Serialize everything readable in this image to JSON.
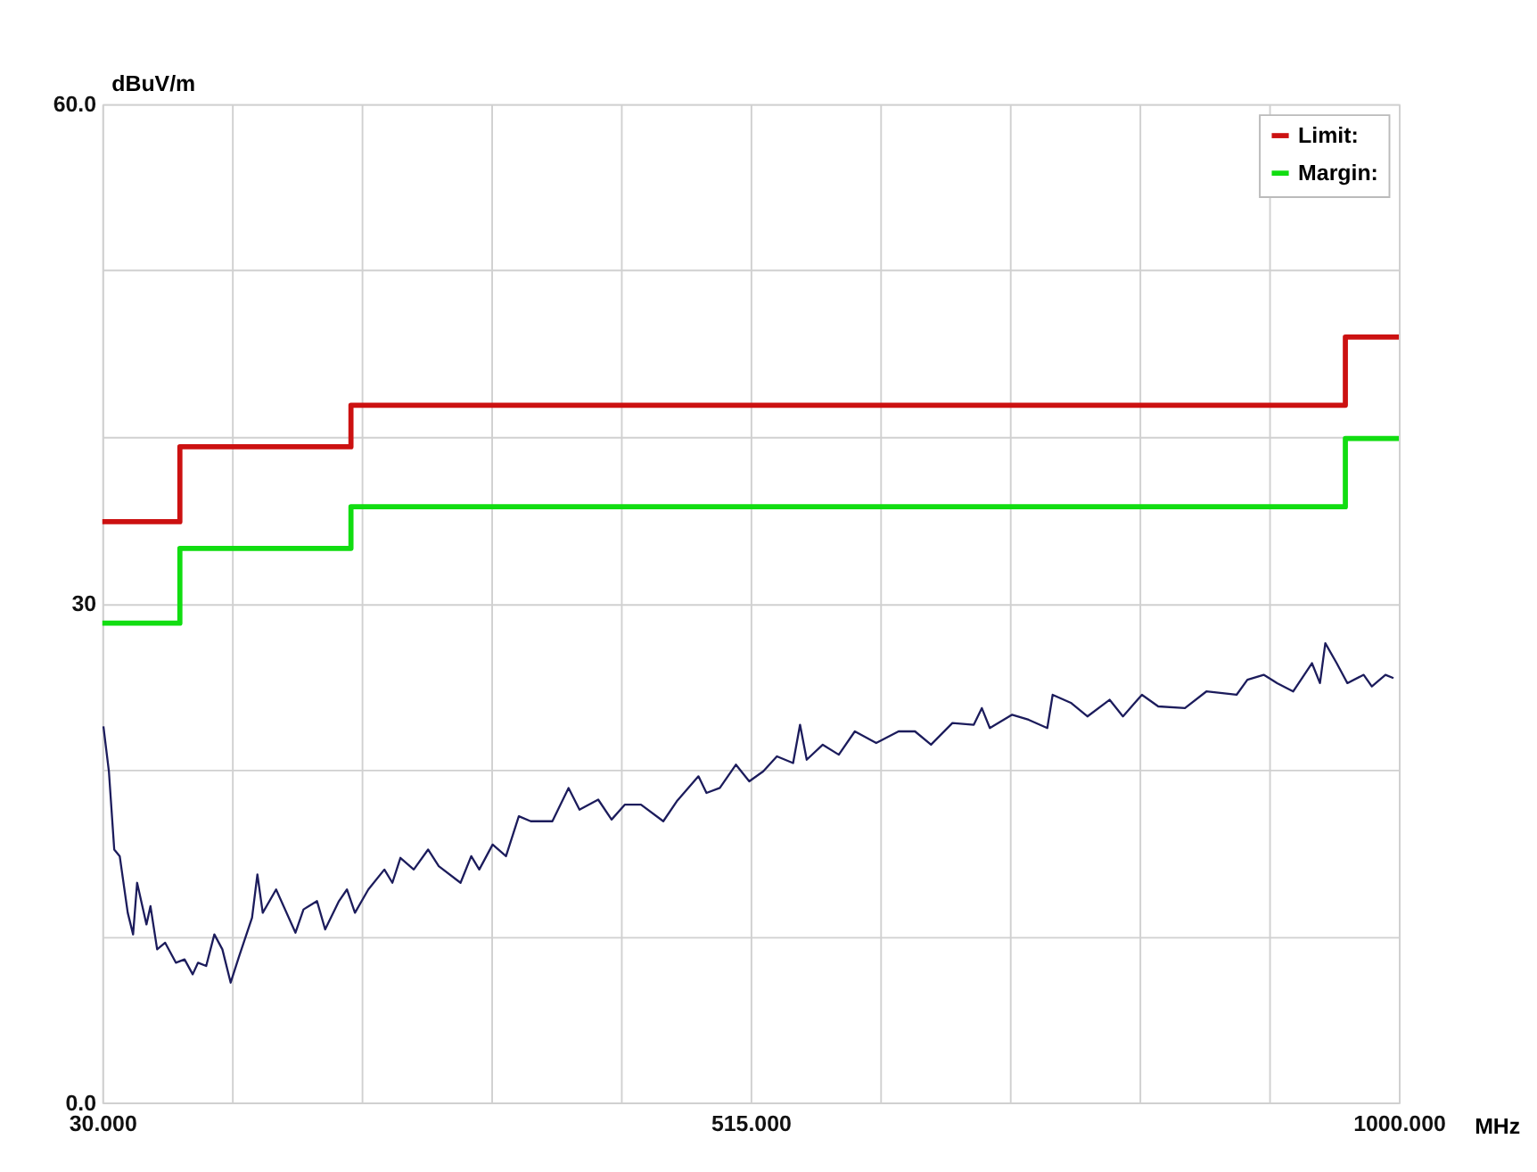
{
  "chart_data": {
    "type": "line",
    "xlabel": "MHz",
    "ylabel": "dBuV/m",
    "xlim": [
      30,
      1000
    ],
    "ylim": [
      0,
      60
    ],
    "xticks": [
      {
        "value": 30,
        "label": "30.000"
      },
      {
        "value": 127,
        "label": null
      },
      {
        "value": 224,
        "label": null
      },
      {
        "value": 321,
        "label": null
      },
      {
        "value": 418,
        "label": null
      },
      {
        "value": 515,
        "label": "515.000"
      },
      {
        "value": 612,
        "label": null
      },
      {
        "value": 709,
        "label": null
      },
      {
        "value": 806,
        "label": null
      },
      {
        "value": 903,
        "label": null
      },
      {
        "value": 1000,
        "label": "1000.000"
      }
    ],
    "yticks": [
      {
        "value": 0,
        "label": "0.0"
      },
      {
        "value": 10,
        "label": null
      },
      {
        "value": 20,
        "label": null
      },
      30,
      {
        "value": 40,
        "label": null
      },
      {
        "value": 50,
        "label": null
      },
      {
        "value": 60,
        "label": "60.0"
      }
    ],
    "grid": true,
    "legend": "top right",
    "series": [
      {
        "name": "Limit:",
        "type": "step",
        "color": "#cc1111",
        "x": [
          30,
          88,
          216,
          960,
          1000
        ],
        "values": [
          34.9,
          39.4,
          41.9,
          46.0,
          46.0
        ]
      },
      {
        "name": "Margin:",
        "type": "step",
        "color": "#11dd11",
        "x": [
          30,
          88,
          216,
          960,
          1000
        ],
        "values": [
          28.8,
          33.3,
          35.8,
          39.9,
          39.9
        ]
      },
      {
        "type": "line",
        "color": "#1c1c5c",
        "x": [
          30.8,
          34.9,
          38.9,
          43,
          49,
          53,
          56,
          63,
          66,
          71,
          77,
          85,
          91.5,
          97.6,
          101.6,
          107.7,
          113.8,
          119.8,
          126,
          132,
          142,
          146,
          150,
          160,
          174.5,
          180.5,
          190.6,
          196.7,
          207,
          213,
          219,
          229,
          241,
          247,
          253,
          263,
          273.7,
          281.7,
          298,
          306,
          312,
          322,
          332,
          341.6,
          350.5,
          366.7,
          378.8,
          387,
          401,
          411,
          421,
          433,
          449.7,
          459.8,
          476,
          482,
          492,
          504,
          514,
          524.5,
          534.7,
          546.8,
          552,
          557,
          569,
          581,
          593,
          609,
          625.7,
          638,
          650,
          666,
          682,
          688,
          694,
          710.7,
          723,
          737,
          741,
          755,
          767,
          783.6,
          793.6,
          807.8,
          820,
          840,
          856,
          878.6,
          886.7,
          898.9,
          909,
          921,
          935,
          941,
          945,
          953.5,
          961.5,
          973.7,
          979.8,
          990,
          996
        ],
        "values": [
          22.6,
          19.9,
          15.2,
          14.8,
          11.4,
          10.1,
          13.2,
          10.7,
          11.8,
          9.2,
          9.6,
          8.4,
          8.6,
          7.7,
          8.4,
          8.2,
          10.1,
          9.2,
          7.2,
          8.7,
          11.1,
          13.7,
          11.4,
          12.8,
          10.2,
          11.6,
          12.1,
          10.4,
          12.1,
          12.8,
          11.4,
          12.8,
          14.0,
          13.2,
          14.7,
          14.0,
          15.2,
          14.2,
          13.2,
          14.8,
          14.0,
          15.5,
          14.8,
          17.2,
          16.9,
          16.9,
          18.9,
          17.6,
          18.2,
          17.0,
          17.9,
          17.9,
          16.9,
          18.1,
          19.6,
          18.6,
          18.9,
          20.3,
          19.3,
          19.9,
          20.8,
          20.4,
          22.7,
          20.6,
          21.5,
          20.9,
          22.3,
          21.6,
          22.3,
          22.3,
          21.5,
          22.8,
          22.7,
          23.7,
          22.5,
          23.3,
          23.0,
          22.5,
          24.5,
          24.0,
          23.2,
          24.2,
          23.2,
          24.5,
          23.8,
          23.7,
          24.7,
          24.5,
          25.4,
          25.7,
          25.2,
          24.7,
          26.4,
          25.2,
          27.6,
          26.4,
          25.2,
          25.7,
          25.0,
          25.7,
          25.5
        ]
      }
    ]
  }
}
